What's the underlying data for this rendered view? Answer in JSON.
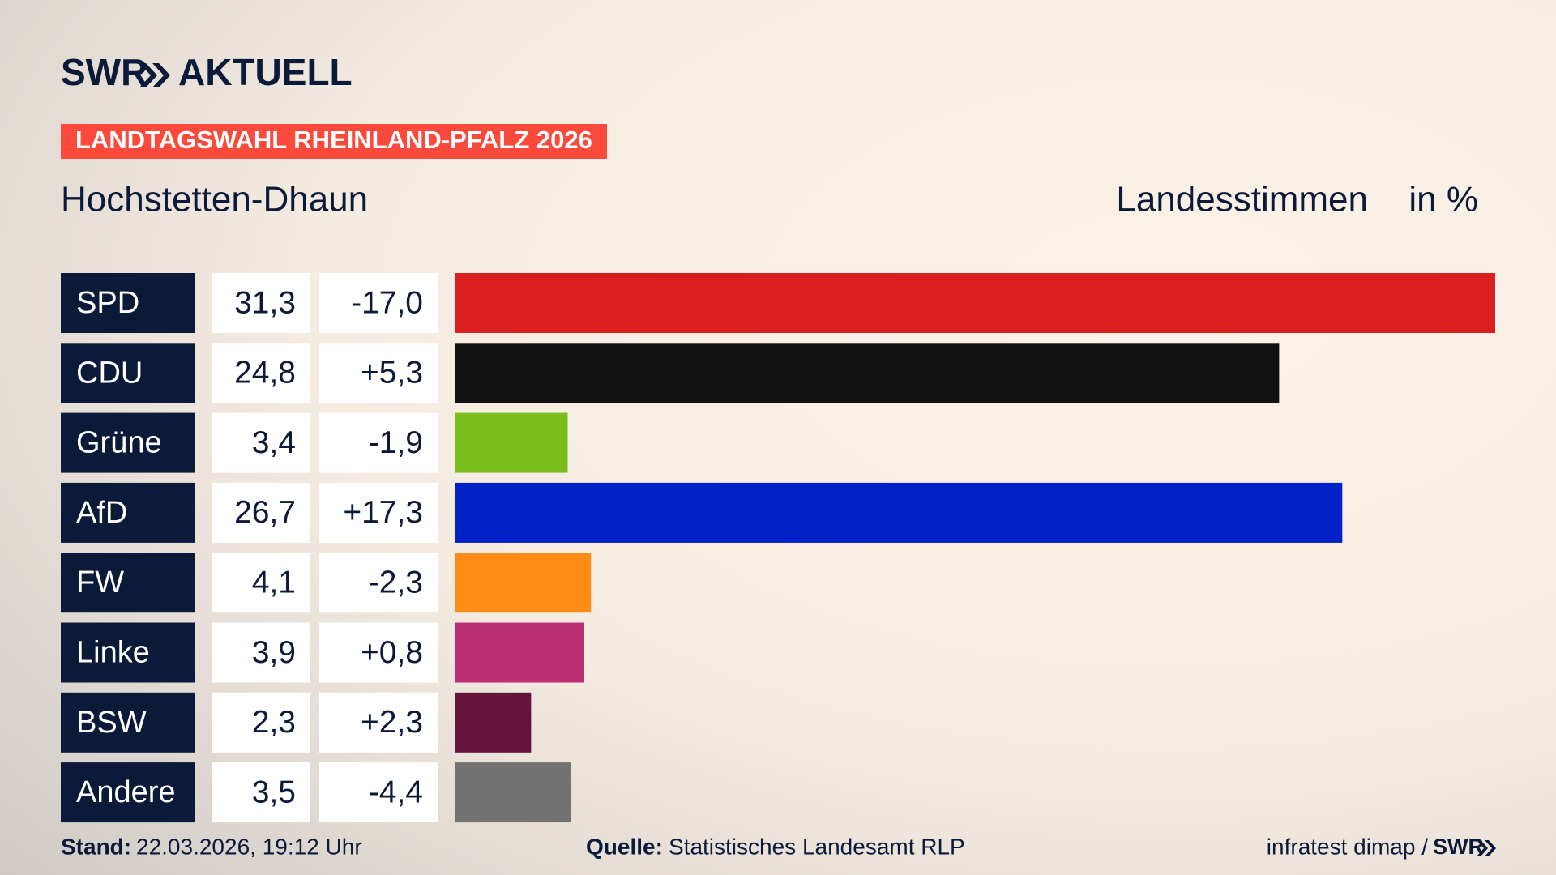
{
  "chart_data": {
    "type": "bar",
    "brand": "SWR",
    "brand_section": "AKTUELL",
    "title": "LANDTAGSWAHL RHEINLAND-PFALZ 2026",
    "subtitle": "Hochstetten-Dhaun",
    "value_header": "Landesstimmen",
    "unit_label": "in %",
    "categories": [
      "SPD",
      "CDU",
      "Grüne",
      "AfD",
      "FW",
      "Linke",
      "BSW",
      "Andere"
    ],
    "values": [
      31.3,
      24.8,
      3.4,
      26.7,
      4.1,
      3.9,
      2.3,
      3.5
    ],
    "value_labels": [
      "31,3",
      "24,8",
      "3,4",
      "26,7",
      "4,1",
      "3,9",
      "2,3",
      "3,5"
    ],
    "changes": [
      "-17,0",
      "+5,3",
      "-1,9",
      "+17,3",
      "-2,3",
      "+0,8",
      "+2,3",
      "-4,4"
    ],
    "colors": [
      "#d91f1f",
      "#121212",
      "#7abe1e",
      "#0020c8",
      "#ff8c17",
      "#bb2f74",
      "#65143b",
      "#727272"
    ]
  },
  "footer": {
    "stand_label": "Stand:",
    "stand": "22.03.2026, 19:12 Uhr",
    "source_label": "Quelle:",
    "source": "Statistisches Landesamt RLP",
    "credit": "infratest dimap /",
    "credit_brand": "SWR"
  }
}
